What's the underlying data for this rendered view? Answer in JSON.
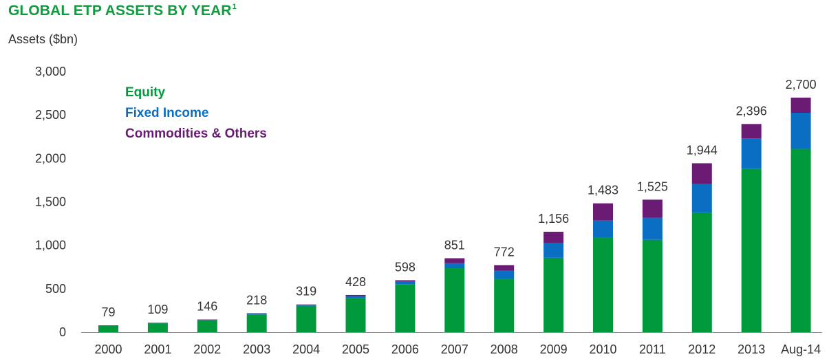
{
  "title": "GLOBAL ETP ASSETS BY YEAR",
  "title_footnote": "1",
  "colors": {
    "equity": "#009a3d",
    "fixed_income": "#0a6fc2",
    "commodities": "#6a1b74",
    "title": "#0f9b3e"
  },
  "chart_data": {
    "type": "bar",
    "stacked": true,
    "ylabel": "Assets ($bn)",
    "xlabel": "",
    "ylim": [
      0,
      3000
    ],
    "yticks": [
      0,
      500,
      1000,
      1500,
      2000,
      2500,
      3000
    ],
    "ytick_labels": [
      "0",
      "500",
      "1,000",
      "1,500",
      "2,000",
      "2,500",
      "3,000"
    ],
    "legend_position": "top-left",
    "grid": false,
    "categories": [
      "2000",
      "2001",
      "2002",
      "2003",
      "2004",
      "2005",
      "2006",
      "2007",
      "2008",
      "2009",
      "2010",
      "2011",
      "2012",
      "2013",
      "Aug-14"
    ],
    "series": [
      {
        "name": "Equity",
        "values": [
          74,
          102,
          134,
          204,
          303,
          395,
          553,
          736,
          610,
          856,
          1085,
          1063,
          1375,
          1882,
          2110
        ]
      },
      {
        "name": "Fixed Income",
        "values": [
          0,
          2,
          6,
          8,
          11,
          21,
          30,
          58,
          96,
          168,
          200,
          254,
          330,
          348,
          415
        ]
      },
      {
        "name": "Commodities & Others",
        "values": [
          5,
          5,
          6,
          6,
          5,
          12,
          15,
          57,
          66,
          132,
          198,
          208,
          239,
          166,
          175
        ]
      }
    ],
    "totals": [
      79,
      109,
      146,
      218,
      319,
      428,
      598,
      851,
      772,
      1156,
      1483,
      1525,
      1944,
      2396,
      2700
    ],
    "total_labels": [
      "79",
      "109",
      "146",
      "218",
      "319",
      "428",
      "598",
      "851",
      "772",
      "1,156",
      "1,483",
      "1,525",
      "1,944",
      "2,396",
      "2,700"
    ]
  }
}
